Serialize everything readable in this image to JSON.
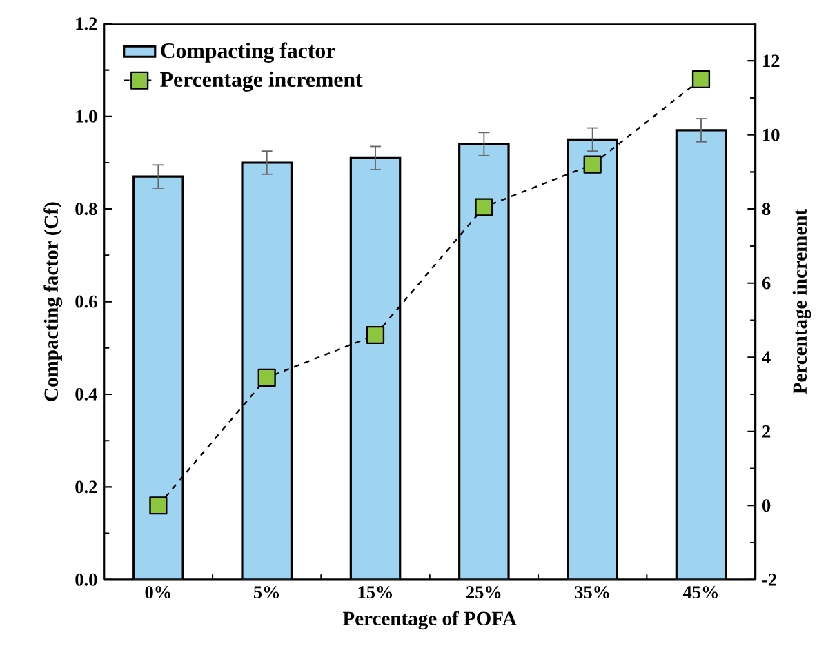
{
  "chart_data": {
    "type": "bar",
    "xlabel": "Percentage of POFA",
    "ylabel": "Compacting factor (Cf)",
    "y2label": "Percentage increment",
    "categories": [
      "0%",
      "5%",
      "15%",
      "25%",
      "35%",
      "45%"
    ],
    "series": [
      {
        "name": "Compacting factor",
        "color": "#9fd3f2",
        "values": [
          0.87,
          0.9,
          0.91,
          0.94,
          0.95,
          0.97
        ],
        "errors": [
          0.025,
          0.025,
          0.025,
          0.025,
          0.025,
          0.025
        ]
      },
      {
        "name": "Percentage increment",
        "type": "line",
        "axis": "y2",
        "color": "#8cc63e",
        "marker": "square",
        "line_style": "dashed",
        "values": [
          0,
          3.45,
          4.6,
          8.05,
          9.2,
          11.5
        ]
      }
    ],
    "ylim": [
      0,
      1.2
    ],
    "yticks": [
      {
        "value": 0,
        "label": "0.0"
      },
      0.2,
      0.4,
      0.6,
      0.8,
      {
        "value": 1,
        "label": "1.0"
      },
      1.2
    ],
    "y2lim": [
      -2,
      13
    ],
    "y2ticks": [
      -2,
      0,
      2,
      4,
      6,
      8,
      10,
      12
    ],
    "grid": false,
    "legend": "top left"
  }
}
